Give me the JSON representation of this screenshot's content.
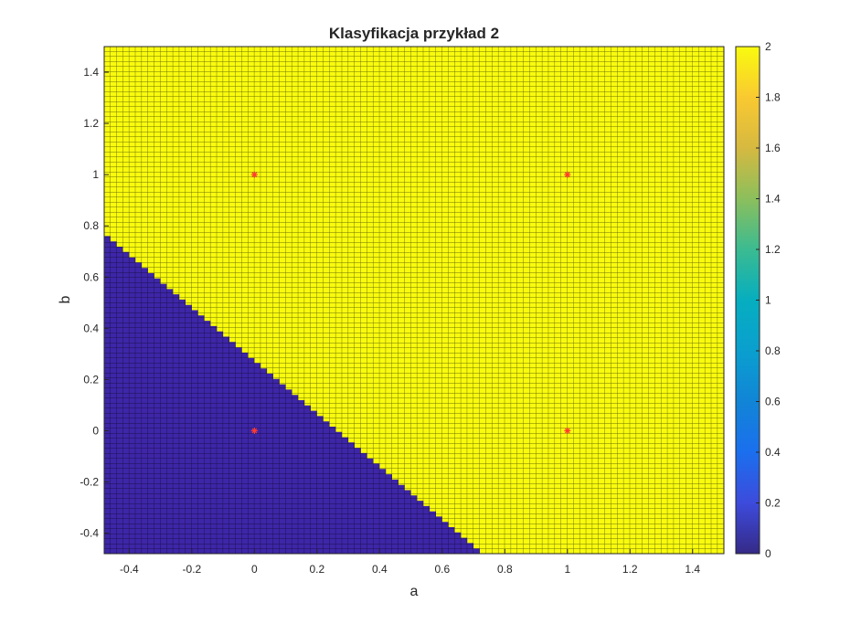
{
  "chart_data": {
    "type": "heatmap",
    "title": "Klasyfikacja przykład 2",
    "xlabel": "a",
    "ylabel": "b",
    "xlim": [
      -0.48,
      1.5
    ],
    "ylim": [
      -0.48,
      1.5
    ],
    "xticks": [
      -0.4,
      -0.2,
      0,
      0.2,
      0.4,
      0.6,
      0.8,
      1,
      1.2,
      1.4
    ],
    "xtick_labels": [
      "-0.4",
      "-0.2",
      "0",
      "0.2",
      "0.4",
      "0.6",
      "0.8",
      "1",
      "1.2",
      "1.4"
    ],
    "yticks": [
      -0.4,
      -0.2,
      0,
      0.2,
      0.4,
      0.6,
      0.8,
      1,
      1.2,
      1.4
    ],
    "ytick_labels": [
      "-0.4",
      "-0.2",
      "0",
      "0.2",
      "0.4",
      "0.6",
      "0.8",
      "1",
      "1.2",
      "1.4"
    ],
    "grid_step": 0.02,
    "cell_values": [
      0,
      2
    ],
    "decision_boundary": {
      "description_points": [
        [
          -0.48,
          0.76
        ],
        [
          0.72,
          -0.48
        ]
      ]
    },
    "class_colors": {
      "0": "#3e26a8",
      "2": "#f9fb0e"
    },
    "points": [
      {
        "x": 0,
        "y": 0
      },
      {
        "x": 0,
        "y": 1
      },
      {
        "x": 1,
        "y": 0
      },
      {
        "x": 1,
        "y": 1
      }
    ],
    "point_color": "#ff3b30",
    "colorbar": {
      "limits": [
        0,
        2
      ],
      "ticks": [
        0,
        0.2,
        0.4,
        0.6,
        0.8,
        1,
        1.2,
        1.4,
        1.6,
        1.8,
        2
      ],
      "tick_labels": [
        "0",
        "0.2",
        "0.4",
        "0.6",
        "0.8",
        "1",
        "1.2",
        "1.4",
        "1.6",
        "1.8",
        "2"
      ],
      "colormap": "parula"
    }
  }
}
